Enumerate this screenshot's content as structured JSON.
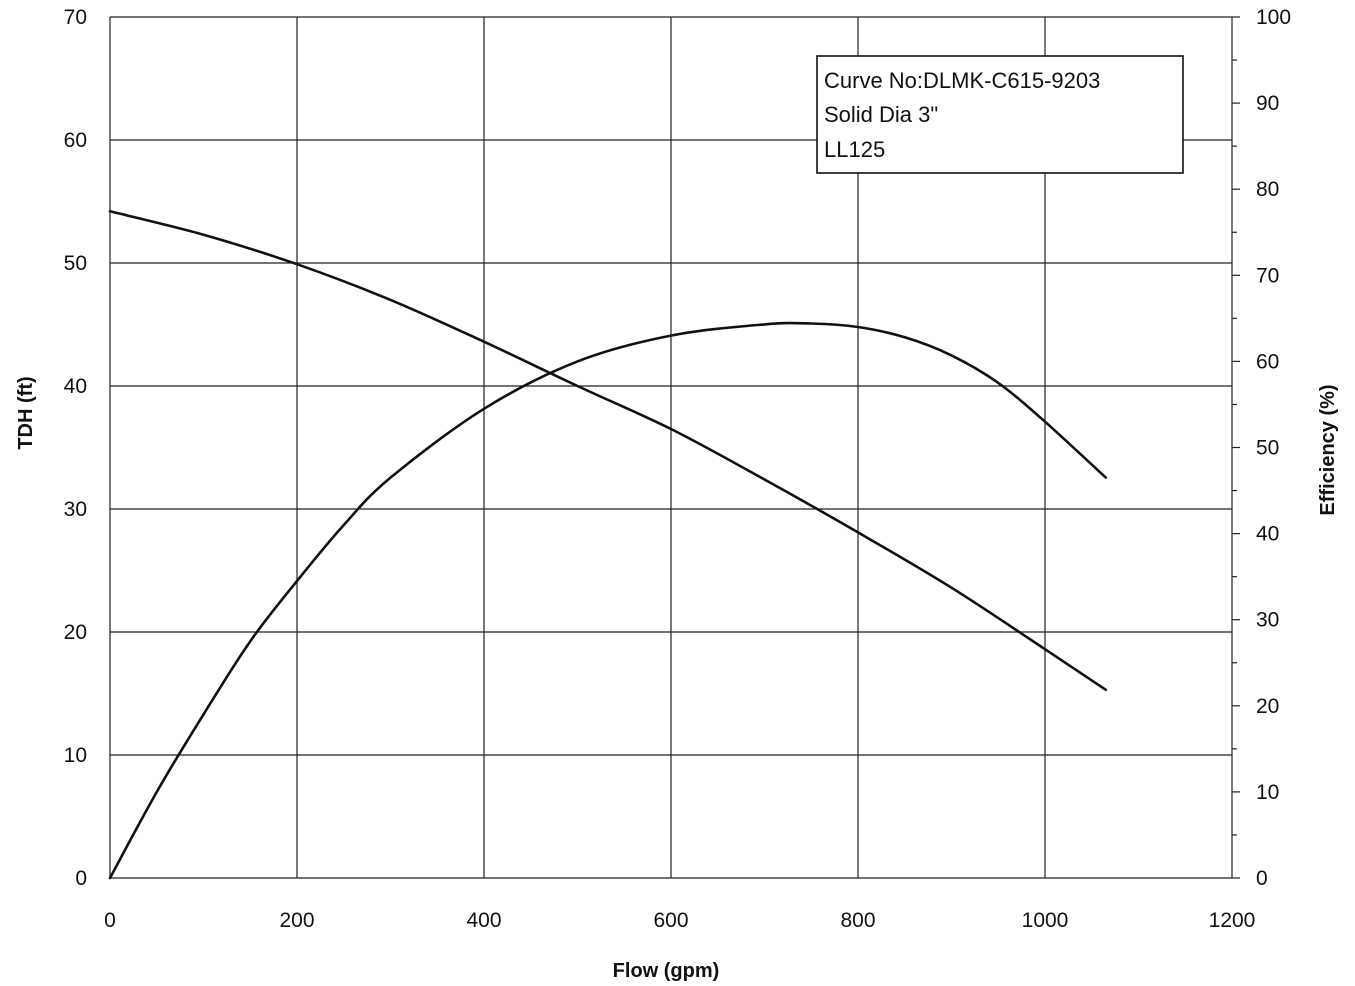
{
  "chart_data": {
    "type": "line",
    "title": "",
    "xlabel": "Flow (gpm)",
    "ylabel": "TDH (ft)",
    "y2label": "Efficiency (%)",
    "xlim": [
      0,
      1200
    ],
    "ylim": [
      0,
      70
    ],
    "y2lim": [
      0,
      100
    ],
    "x_ticks": [
      "0",
      "200",
      "400",
      "600",
      "800",
      "1000",
      "1200"
    ],
    "y_ticks": [
      "0",
      "10",
      "20",
      "30",
      "40",
      "50",
      "60",
      "70"
    ],
    "y2_ticks": [
      "0",
      "10",
      "20",
      "30",
      "40",
      "50",
      "60",
      "70",
      "80",
      "90",
      "100"
    ],
    "grid": true,
    "annotation_box": {
      "placement": "top-right",
      "lines": [
        "Curve No:DLMK-C615-9203",
        "Solid Dia 3\"",
        "LL125"
      ]
    },
    "series": [
      {
        "axis": "left",
        "x": [
          0,
          100,
          200,
          300,
          400,
          500,
          600,
          700,
          800,
          900,
          1000,
          1065
        ],
        "values": [
          54.2,
          52.3,
          49.9,
          47.0,
          43.6,
          40.0,
          36.5,
          32.4,
          28.1,
          23.6,
          18.6,
          15.3
        ]
      },
      {
        "axis": "right",
        "x": [
          0,
          50,
          100,
          150,
          200,
          250,
          300,
          400,
          500,
          600,
          700,
          750,
          800,
          850,
          900,
          950,
          1000,
          1065
        ],
        "values": [
          0,
          10,
          19,
          27.5,
          34.5,
          41,
          46.5,
          54.5,
          60,
          63,
          64.3,
          64.4,
          64,
          62.8,
          60.7,
          57.5,
          53,
          46.5
        ]
      }
    ]
  }
}
